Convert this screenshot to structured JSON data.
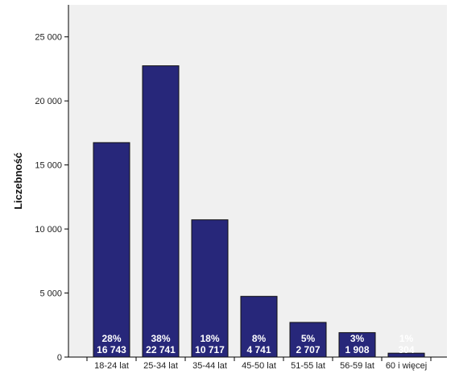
{
  "chart_data": {
    "type": "bar",
    "ylabel": "Liczebność",
    "xlabel": "",
    "ylim": [
      0,
      27500
    ],
    "yticks": [
      0,
      5000,
      10000,
      15000,
      20000,
      25000
    ],
    "ytick_labels": [
      "0",
      "5 000",
      "10 000",
      "15 000",
      "20 000",
      "25 000"
    ],
    "grid": false,
    "categories": [
      "18-24 lat",
      "25-34 lat",
      "35-44 lat",
      "45-50 lat",
      "51-55 lat",
      "56-59 lat",
      "60 i więcej"
    ],
    "values": [
      16743,
      22741,
      10717,
      4741,
      2707,
      1908,
      304
    ],
    "percent_labels": [
      "28%",
      "38%",
      "18%",
      "8%",
      "5%",
      "3%",
      "1%"
    ],
    "value_labels": [
      "16 743",
      "22 741",
      "10 717",
      "4 741",
      "2 707",
      "1 908",
      "304"
    ],
    "colors": {
      "bar": "#27277a",
      "plot_background": "#f0f0f0",
      "label": "#ffffff"
    }
  }
}
